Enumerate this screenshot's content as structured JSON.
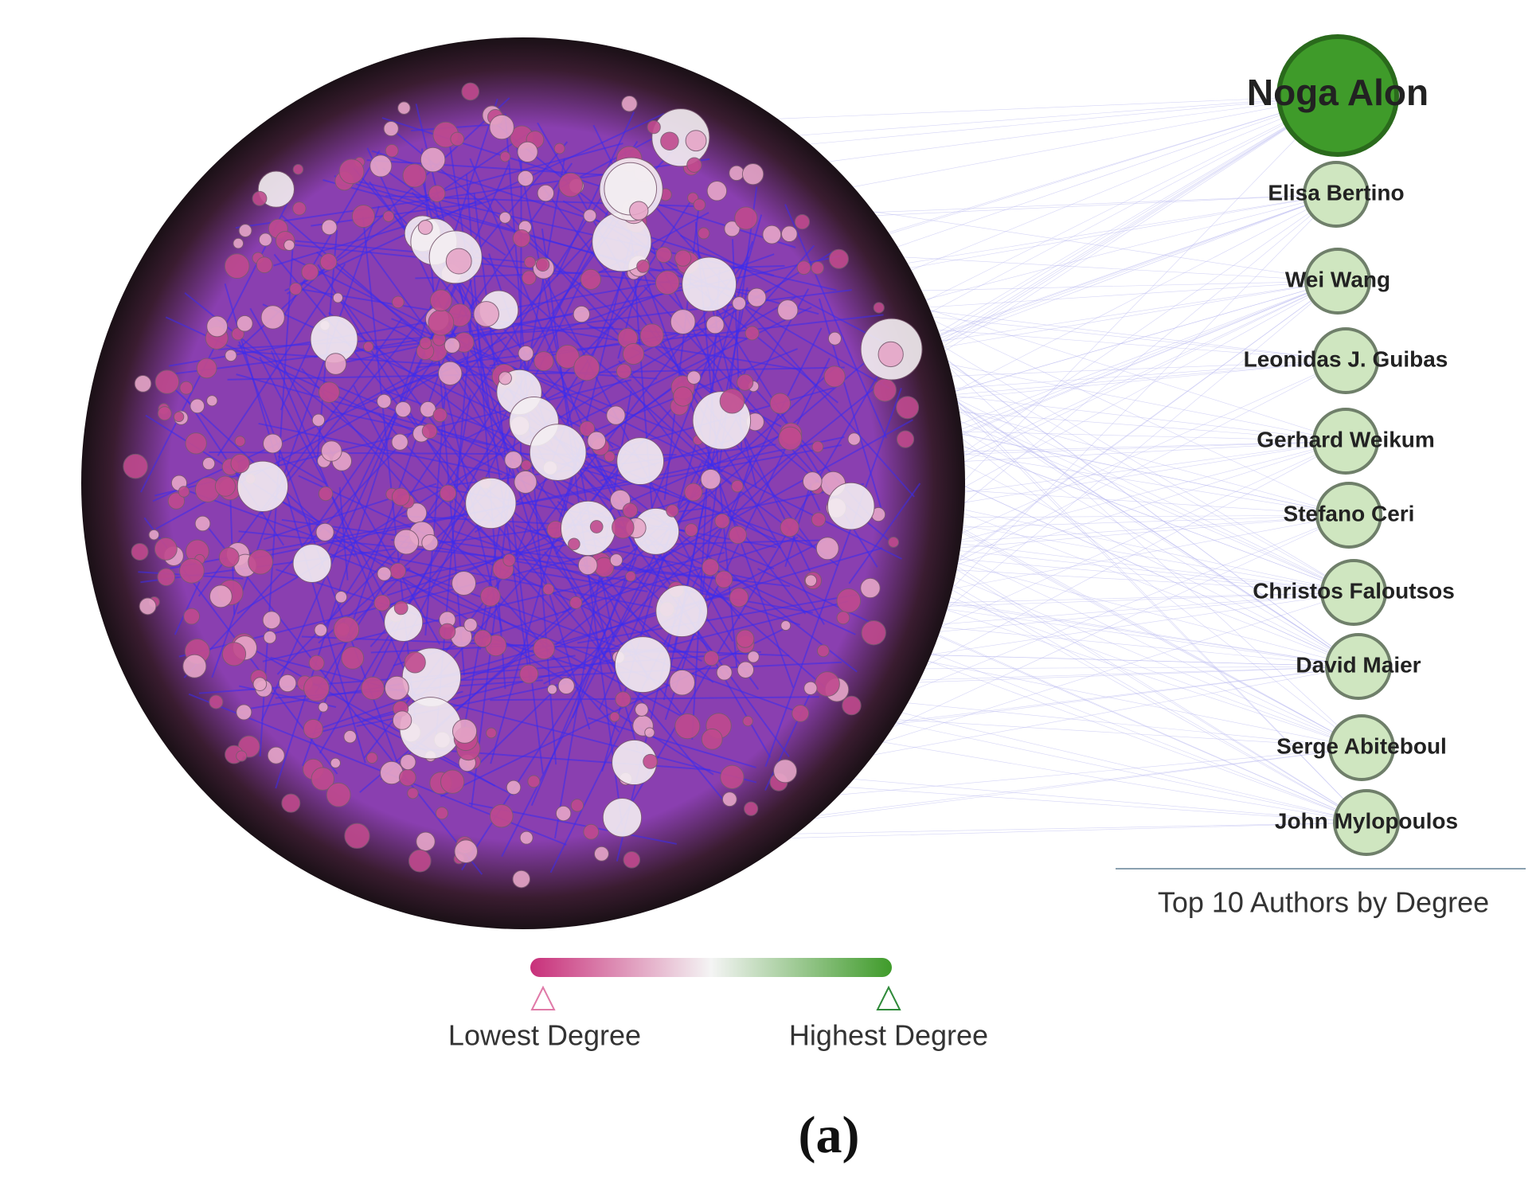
{
  "top_authors": {
    "title": "Top 10 Authors by Degree",
    "names": [
      "Noga Alon",
      "Elisa Bertino",
      "Wei Wang",
      "Leonidas J. Guibas",
      "Gerhard Weikum",
      "Stefano Ceri",
      "Christos Faloutsos",
      "David Maier",
      "Serge Abiteboul",
      "John Mylopoulos"
    ]
  },
  "legend": {
    "low": "Lowest Degree",
    "high": "Highest Degree"
  },
  "caption": "(a)"
}
